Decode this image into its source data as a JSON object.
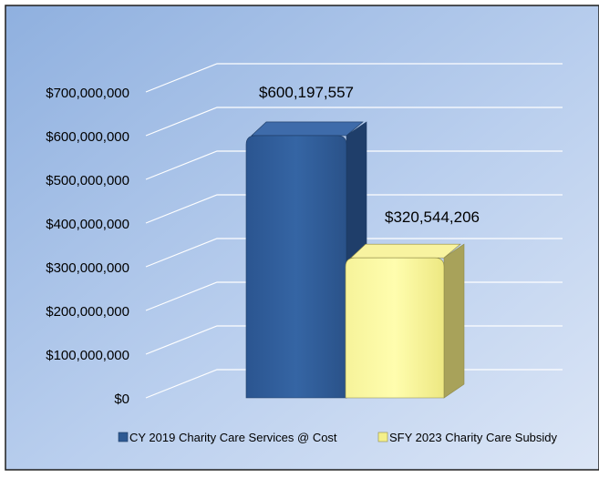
{
  "chart_data": {
    "type": "bar",
    "title": "",
    "xlabel": "",
    "ylabel": "",
    "ylim": [
      0,
      700000000
    ],
    "yticks": [
      0,
      100000000,
      200000000,
      300000000,
      400000000,
      500000000,
      600000000,
      700000000
    ],
    "ytick_labels": [
      "$0",
      "$100,000,000",
      "$200,000,000",
      "$300,000,000",
      "$400,000,000",
      "$500,000,000",
      "$600,000,000",
      "$700,000,000"
    ],
    "grid": true,
    "legend_position": "bottom",
    "series": [
      {
        "name": "CY 2019 Charity Care Services @ Cost",
        "value": 600197557,
        "label": "$600,197,557",
        "color": "#2E5A93"
      },
      {
        "name": "SFY 2023 Charity Care Subsidy",
        "value": 320544206,
        "label": "$320,544,206",
        "color": "#F4F08A"
      }
    ]
  }
}
